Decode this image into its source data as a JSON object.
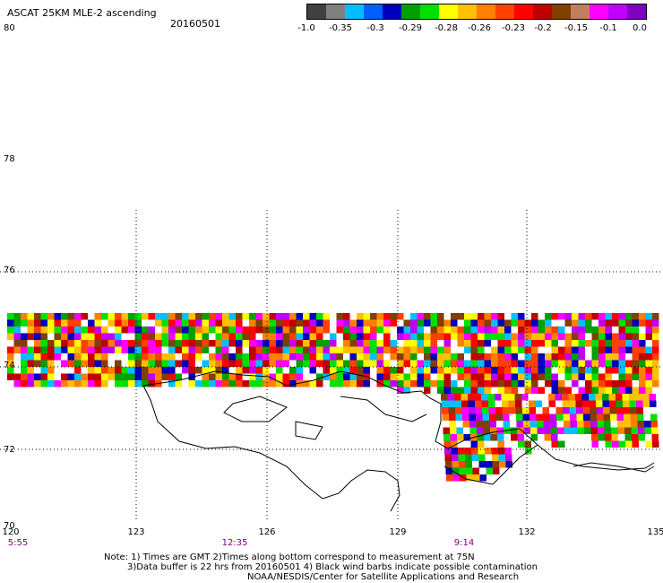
{
  "header": {
    "title": "ASCAT 25KM MLE-2 ascending",
    "date": "20160501"
  },
  "colorbar": {
    "colors": [
      "#404040",
      "#808080",
      "#00c0ff",
      "#0060ff",
      "#0000c0",
      "#00a000",
      "#00e000",
      "#ffff00",
      "#ffc000",
      "#ff8000",
      "#ff4000",
      "#ff0000",
      "#c00000",
      "#804000",
      "#c08060",
      "#ff00ff",
      "#c000ff",
      "#8000c0"
    ],
    "ticks": [
      "-1.0",
      "-0.35",
      "-0.3",
      "-0.29",
      "-0.28",
      "-0.26",
      "-0.23",
      "-0.2",
      "-0.15",
      "-0.1",
      "0.0"
    ]
  },
  "map": {
    "y_labels": [
      "80",
      "78",
      "76",
      "74",
      "72",
      "70"
    ],
    "x_labels": [
      "120",
      "123",
      "126",
      "129",
      "132",
      "135"
    ],
    "time_labels": [
      "5:55",
      "12:35",
      "9:14"
    ]
  },
  "footer": {
    "line1": "Note: 1) Times are GMT 2)Times along bottom correspond to measurement at 75N",
    "line2": "3)Data buffer is 22 hrs from 20160501 4) Black wind barbs indicate possible contamination",
    "line3": "NOAA/NESDIS/Center for Satellite Applications and Research"
  }
}
